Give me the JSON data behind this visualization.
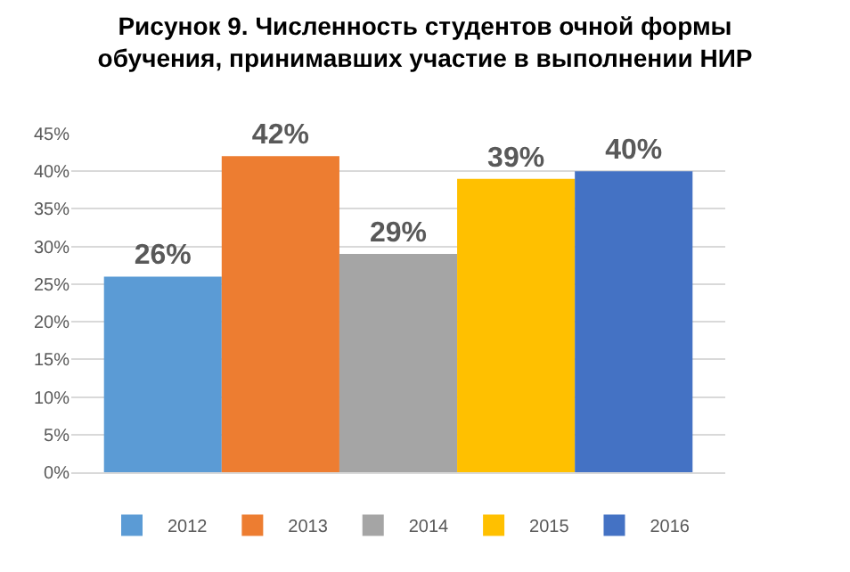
{
  "chart_data": {
    "type": "bar",
    "title": "Рисунок 9. Численность студентов очной формы обучения, принимавших участие в выполнении НИР",
    "categories": [
      null
    ],
    "series": [
      {
        "name": "2012",
        "color": "#5b9bd5",
        "values": [
          26
        ],
        "value_labels": [
          "26%"
        ]
      },
      {
        "name": "2013",
        "color": "#ed7d31",
        "values": [
          42
        ],
        "value_labels": [
          "42%"
        ]
      },
      {
        "name": "2014",
        "color": "#a5a5a5",
        "values": [
          29
        ],
        "value_labels": [
          "29%"
        ]
      },
      {
        "name": "2015",
        "color": "#ffc000",
        "values": [
          39
        ],
        "value_labels": [
          "39%"
        ]
      },
      {
        "name": "2016",
        "color": "#4472c4",
        "values": [
          40
        ],
        "value_labels": [
          "40%"
        ]
      }
    ],
    "ylim": [
      0,
      45
    ],
    "yticks": [
      {
        "value": 0,
        "label": "0%"
      },
      {
        "value": 5,
        "label": "5%"
      },
      {
        "value": 10,
        "label": "10%"
      },
      {
        "value": 15,
        "label": "15%"
      },
      {
        "value": 20,
        "label": "20%"
      },
      {
        "value": 25,
        "label": "25%"
      },
      {
        "value": 30,
        "label": "30%"
      },
      {
        "value": 35,
        "label": "35%"
      },
      {
        "value": 40,
        "label": "40%"
      },
      {
        "value": 45,
        "label": "45%"
      }
    ],
    "grid": "y",
    "legend": "bottom"
  }
}
